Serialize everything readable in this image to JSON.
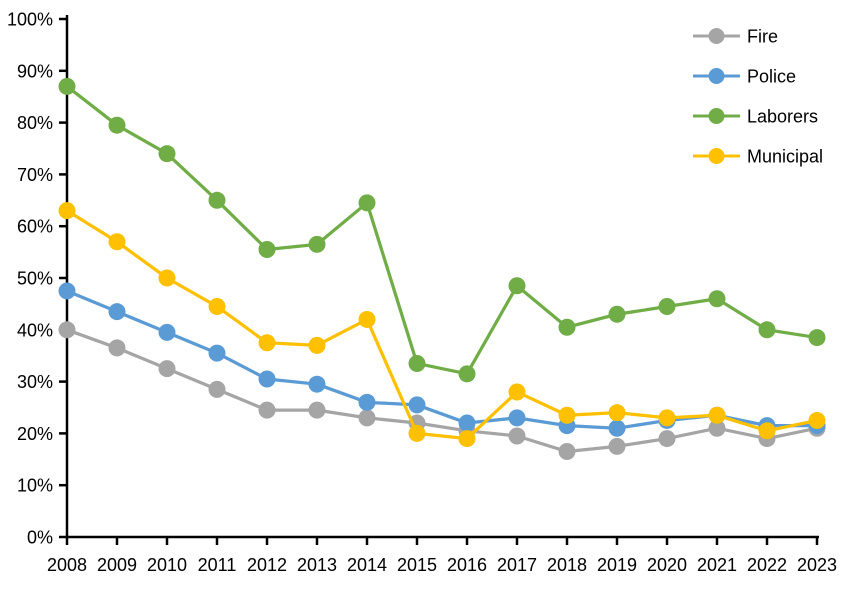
{
  "chart_data": {
    "type": "line",
    "title": "",
    "xlabel": "",
    "ylabel": "",
    "grid": false,
    "legend_position": "top-right",
    "legend_marker": "line-with-dot",
    "axis_color": "#000000",
    "ylim": [
      0,
      100
    ],
    "ytick_step": 10,
    "ytick_labels": [
      "0%",
      "10%",
      "20%",
      "30%",
      "40%",
      "50%",
      "60%",
      "70%",
      "80%",
      "90%",
      "100%"
    ],
    "categories": [
      "2008",
      "2009",
      "2010",
      "2011",
      "2012",
      "2013",
      "2014",
      "2015",
      "2016",
      "2017",
      "2018",
      "2019",
      "2020",
      "2021",
      "2022",
      "2023"
    ],
    "series": [
      {
        "name": "Fire",
        "color": "#A5A5A5",
        "values": [
          40,
          36.5,
          32.5,
          28.5,
          24.5,
          24.5,
          23,
          22,
          20.5,
          19.5,
          16.5,
          17.5,
          19,
          21,
          19,
          21
        ]
      },
      {
        "name": "Police",
        "color": "#5B9BD5",
        "values": [
          47.5,
          43.5,
          39.5,
          35.5,
          30.5,
          29.5,
          26,
          25.5,
          22,
          23,
          21.5,
          21,
          22.5,
          23.5,
          21.5,
          21.5
        ]
      },
      {
        "name": "Laborers",
        "color": "#70AD47",
        "values": [
          87,
          79.5,
          74,
          65,
          55.5,
          56.5,
          64.5,
          33.5,
          31.5,
          48.5,
          40.5,
          43,
          44.5,
          46,
          40,
          38.5
        ]
      },
      {
        "name": "Municipal",
        "color": "#FFC000",
        "values": [
          63,
          57,
          50,
          44.5,
          37.5,
          37,
          42,
          20,
          19,
          28,
          23.5,
          24,
          23,
          23.5,
          20.5,
          22.5
        ]
      }
    ]
  }
}
